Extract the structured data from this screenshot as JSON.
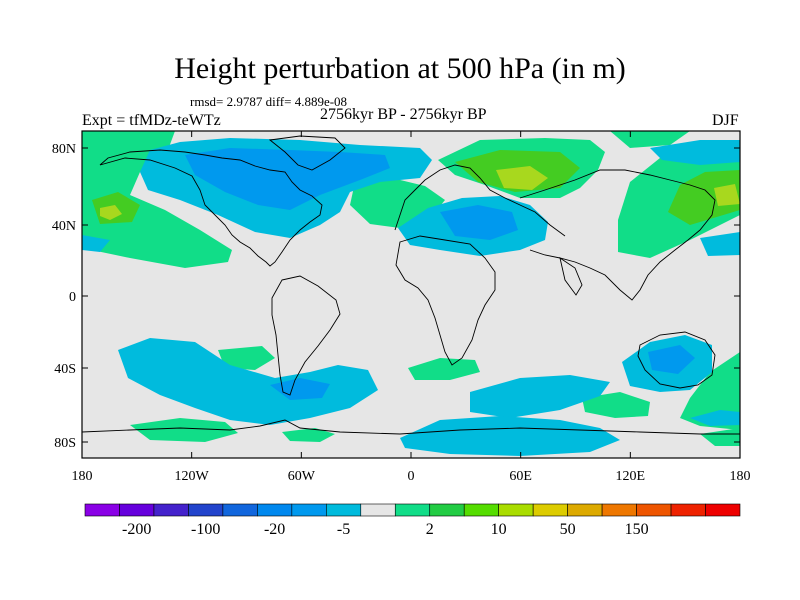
{
  "title": "Height perturbation at 500 hPa (in m)",
  "stats": "rmsd= 2.9787 diff= 4.889e-08",
  "experiment": "Expt = tfMDz-teWTz",
  "period": "2756kyr BP - 2756kyr BP",
  "season": "DJF",
  "colors": {
    "background": "#e6e6e6",
    "light_blue": "#00bbdd",
    "mid_blue": "#0099ee",
    "light_green": "#11dd88",
    "mid_green": "#44cc22",
    "yellow_green": "#a8d81e",
    "coast": "#000000"
  },
  "axes": {
    "lat_labels": [
      "80N",
      "40N",
      "0",
      "40S",
      "80S"
    ],
    "lon_labels": [
      "180",
      "120W",
      "60W",
      "0",
      "60E",
      "120E",
      "180"
    ]
  },
  "colorbar": {
    "colors": [
      "#8a00e6",
      "#6600dd",
      "#4422cc",
      "#2244cc",
      "#1166dd",
      "#0088ee",
      "#0099ee",
      "#00bbdd",
      "#e6e6e6",
      "#11dd88",
      "#22cc44",
      "#55dd00",
      "#aadd00",
      "#ddcc00",
      "#ddaa00",
      "#ee7700",
      "#ee5500",
      "#ee2200",
      "#ee0000"
    ],
    "labels": [
      "-200",
      "-100",
      "-20",
      "-5",
      "2",
      "10",
      "50",
      "150"
    ]
  }
}
